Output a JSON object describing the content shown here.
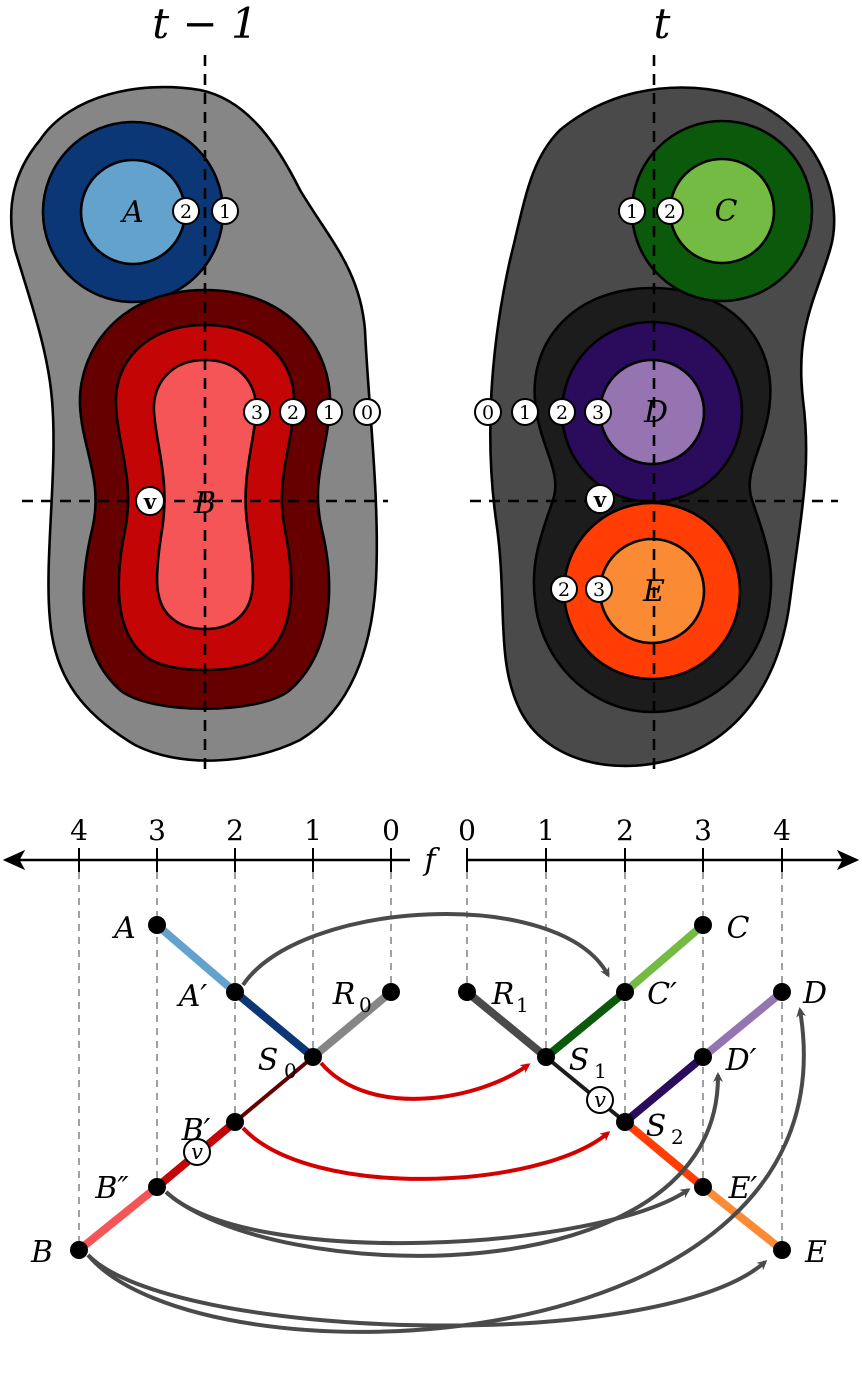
{
  "titles": {
    "left": "t − 1",
    "right": "t"
  },
  "left_panel": {
    "regions": {
      "a": "A",
      "b": "B"
    },
    "badges_a": [
      "2",
      "1"
    ],
    "badges_b": [
      "3",
      "2",
      "1",
      "0"
    ],
    "vertex": "v",
    "colors": {
      "outer": "#868686",
      "a_ring": "#0b3777",
      "a_core": "#62a2cc",
      "b_ring1": "#660000",
      "b_ring2": "#c40505",
      "b_core": "#f55556"
    }
  },
  "right_panel": {
    "regions": {
      "c": "C",
      "d": "D",
      "e": "E"
    },
    "badges_c": [
      "1",
      "2"
    ],
    "badges_d": [
      "0",
      "1",
      "2",
      "3"
    ],
    "badges_e": [
      "2",
      "3"
    ],
    "vertex": "v",
    "colors": {
      "outer": "#4a4a4a",
      "inner": "#1c1c1c",
      "c_ring": "#0b5a0b",
      "c_core": "#74bb43",
      "d_ring": "#2b0b5c",
      "d_core": "#9674b1",
      "e_ring": "#ff3d04",
      "e_core": "#fb8a34"
    }
  },
  "axis": {
    "label": "f",
    "left_ticks": [
      "4",
      "3",
      "2",
      "1",
      "0"
    ],
    "right_ticks": [
      "0",
      "1",
      "2",
      "3",
      "4"
    ]
  },
  "tree_labels": {
    "A": "A",
    "A1": "A′",
    "S0": "S",
    "S0_sub": "0",
    "R0": "R",
    "R0_sub": "0",
    "B1": "B′",
    "B2": "B″",
    "B": "B",
    "C": "C",
    "C1": "C′",
    "R1": "R",
    "R1_sub": "1",
    "S1": "S",
    "S1_sub": "1",
    "D": "D",
    "D1": "D′",
    "S2": "S",
    "S2_sub": "2",
    "E1": "E′",
    "E": "E",
    "v_left": "v",
    "v_right": "v"
  }
}
